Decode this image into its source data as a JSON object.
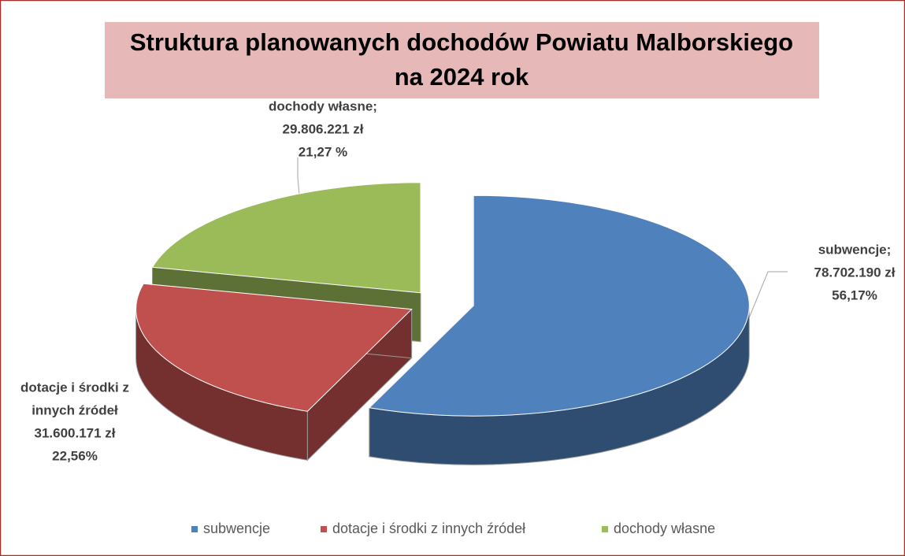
{
  "chart_data": {
    "type": "pie3d",
    "title": [
      "Struktura planowanych dochodów Powiatu Malborskiego",
      "na 2024 rok"
    ],
    "categories": [
      "subwencje",
      "dotacje i środki z innych źródeł",
      "dochody własne"
    ],
    "label_names": [
      [
        "subwencje;"
      ],
      [
        "dotacje i środki z",
        "innych źródeł"
      ],
      [
        "dochody własne;"
      ]
    ],
    "values": [
      78702190,
      31600171,
      29806221
    ],
    "value_labels": [
      "78.702.190 zł",
      "31.600.171 zł",
      "29.806.221 zł"
    ],
    "percents": [
      56.17,
      22.56,
      21.27
    ],
    "percent_labels": [
      "56,17%",
      "22,56%",
      "21,27 %"
    ],
    "colors": [
      "#4f81bd",
      "#c0504d",
      "#9bbb59"
    ],
    "legend": "bottom"
  }
}
